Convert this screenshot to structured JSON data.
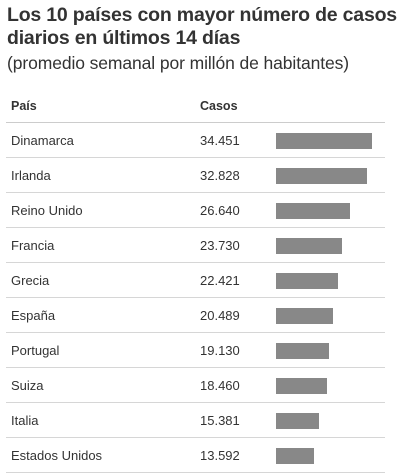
{
  "header": {
    "title": "Los 10 países con mayor número de casos diarios en últimos 14 días",
    "subtitle": "(promedio semanal por millón de habitantes)"
  },
  "table_headers": {
    "country": "País",
    "cases": "Casos"
  },
  "colors": {
    "bar": "#888888",
    "text": "#333333",
    "divider": "#d6d6d6"
  },
  "chart_data": {
    "type": "bar",
    "title": "Los 10 países con mayor número de casos diarios en últimos 14 días",
    "subtitle": "(promedio semanal por millón de habitantes)",
    "xlabel": "",
    "ylabel": "",
    "categories": [
      "Dinamarca",
      "Irlanda",
      "Reino Unido",
      "Francia",
      "Grecia",
      "España",
      "Portugal",
      "Suiza",
      "Italia",
      "Estados Unidos"
    ],
    "values": [
      34451,
      32828,
      26640,
      23730,
      22421,
      20489,
      19130,
      18460,
      15381,
      13592
    ],
    "value_labels": [
      "34.451",
      "32.828",
      "26.640",
      "23.730",
      "22.421",
      "20.489",
      "19.130",
      "18.460",
      "15.381",
      "13.592"
    ],
    "grid": false,
    "legend": "none"
  }
}
